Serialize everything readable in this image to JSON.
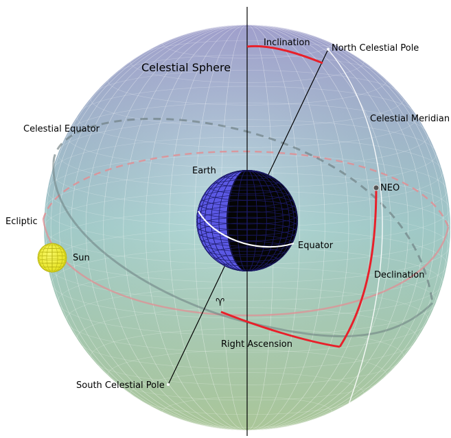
{
  "labels": {
    "inclination": "Inclination",
    "north_pole": "North Celestial Pole",
    "sphere": "Celestial Sphere",
    "meridian": "Celestial Meridian",
    "equator_celestial": "Celestial Equator",
    "earth": "Earth",
    "neo": "NEO",
    "ecliptic": "Ecliptic",
    "equator": "Equator",
    "sun": "Sun",
    "declination": "Declination",
    "aries": "♈",
    "right_ascension": "Right Ascension",
    "south_pole": "South Celestial Pole"
  },
  "colors": {
    "sphere_top": "#a7a6d8",
    "sphere_mid": "#a9d6d4",
    "sphere_bottom": "#b5d3a2",
    "ecliptic": "#e08f94",
    "celestial_equator": "#6b7d80",
    "arc": "#e8202a",
    "earth_lit": "#5b58e4",
    "sun": "#f2f032"
  }
}
